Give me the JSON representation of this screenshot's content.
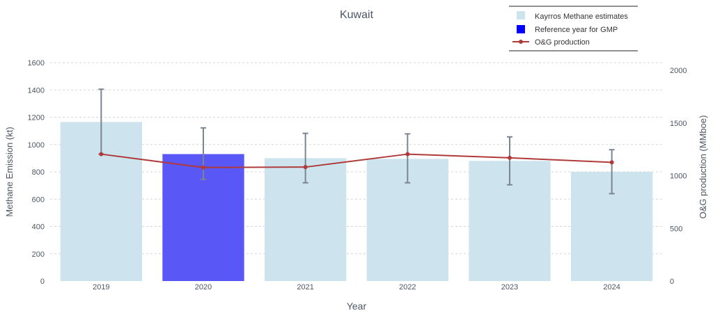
{
  "chart_data": {
    "type": "bar",
    "title": "Kuwait",
    "xlabel": "Year",
    "ylabel": "Methane Emission (kt)",
    "y2label": "O&G production (MMboe)",
    "categories": [
      "2019",
      "2020",
      "2021",
      "2022",
      "2023",
      "2024"
    ],
    "ylim": [
      0,
      1600
    ],
    "y2lim": [
      0,
      2074
    ],
    "yticks": [
      0,
      200,
      400,
      600,
      800,
      1000,
      1200,
      1400,
      1600
    ],
    "y2ticks": [
      0,
      500,
      1000,
      1500,
      2000
    ],
    "grid": true,
    "legend_position": "top-right",
    "series": [
      {
        "name": "Kayrros Methane estimates",
        "type": "bar",
        "axis": "left",
        "values": [
          1165,
          930,
          900,
          895,
          880,
          800
        ],
        "error_low": [
          930,
          745,
          720,
          720,
          705,
          640
        ],
        "error_high": [
          1405,
          1122,
          1082,
          1078,
          1056,
          962
        ],
        "color": "#cde3ee"
      },
      {
        "name": "Reference year for GMP",
        "type": "bar-highlight",
        "axis": "left",
        "category": "2020",
        "color": "#5a57f7",
        "legend_color": "#0000ff"
      },
      {
        "name": "O&G production",
        "type": "line",
        "axis": "right",
        "values": [
          1205,
          1078,
          1082,
          1205,
          1170,
          1127
        ],
        "color": "#b03a3a"
      }
    ],
    "colors": {
      "error_bar": "#7a8591",
      "grid": "#d6d6d6",
      "axis_text": "#4d5663",
      "title_text": "#4d5663"
    }
  }
}
